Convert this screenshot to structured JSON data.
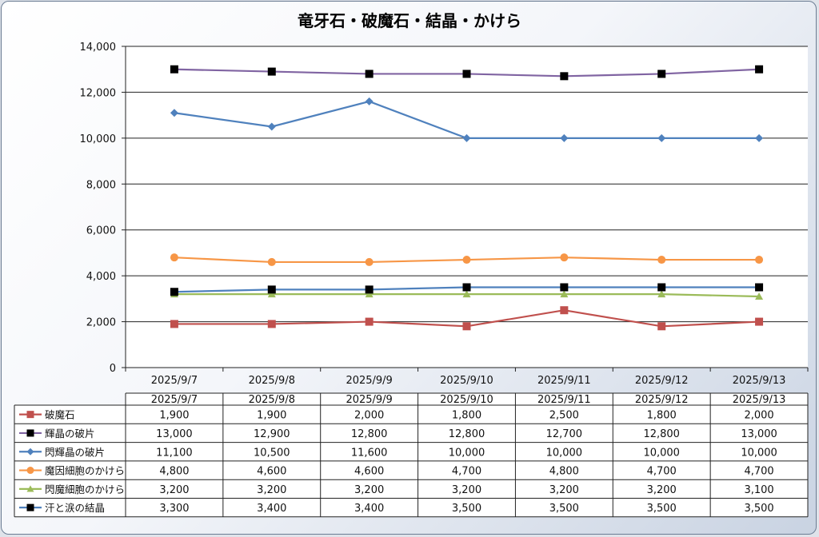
{
  "chart_data": {
    "type": "line",
    "title": "竜牙石・破魔石・結晶・かけら",
    "xlabel": "",
    "ylabel": "",
    "categories": [
      "2025/9/7",
      "2025/9/8",
      "2025/9/9",
      "2025/9/10",
      "2025/9/11",
      "2025/9/12",
      "2025/9/13"
    ],
    "ylim": [
      0,
      14000
    ],
    "yticks": [
      "0",
      "2,000",
      "4,000",
      "6,000",
      "8,000",
      "10,000",
      "12,000",
      "14,000"
    ],
    "ytick_values": [
      0,
      2000,
      4000,
      6000,
      8000,
      10000,
      12000,
      14000
    ],
    "grid": "horizontal",
    "legend": "data-table",
    "series": [
      {
        "name": "破魔石",
        "color": "#c0504d",
        "marker": "square",
        "values": [
          1900,
          1900,
          2000,
          1800,
          2500,
          1800,
          2000
        ],
        "labels": [
          "1,900",
          "1,900",
          "2,000",
          "1,800",
          "2,500",
          "1,800",
          "2,000"
        ]
      },
      {
        "name": "輝晶の破片",
        "color": "#8064a2",
        "marker": "square-black",
        "values": [
          13000,
          12900,
          12800,
          12800,
          12700,
          12800,
          13000
        ],
        "labels": [
          "13,000",
          "12,900",
          "12,800",
          "12,800",
          "12,700",
          "12,800",
          "13,000"
        ]
      },
      {
        "name": "閃輝晶の破片",
        "color": "#4f81bd",
        "marker": "diamond",
        "values": [
          11100,
          10500,
          11600,
          10000,
          10000,
          10000,
          10000
        ],
        "labels": [
          "11,100",
          "10,500",
          "11,600",
          "10,000",
          "10,000",
          "10,000",
          "10,000"
        ]
      },
      {
        "name": "魔因細胞のかけら",
        "color": "#f79646",
        "marker": "circle",
        "values": [
          4800,
          4600,
          4600,
          4700,
          4800,
          4700,
          4700
        ],
        "labels": [
          "4,800",
          "4,600",
          "4,600",
          "4,700",
          "4,800",
          "4,700",
          "4,700"
        ]
      },
      {
        "name": "閃魔細胞のかけら",
        "color": "#9bbb59",
        "marker": "triangle",
        "values": [
          3200,
          3200,
          3200,
          3200,
          3200,
          3200,
          3100
        ],
        "labels": [
          "3,200",
          "3,200",
          "3,200",
          "3,200",
          "3,200",
          "3,200",
          "3,100"
        ]
      },
      {
        "name": "汗と涙の結晶",
        "color": "#4f81bd",
        "marker": "square-black",
        "values": [
          3300,
          3400,
          3400,
          3500,
          3500,
          3500,
          3500
        ],
        "labels": [
          "3,300",
          "3,400",
          "3,400",
          "3,500",
          "3,500",
          "3,500",
          "3,500"
        ]
      }
    ]
  }
}
